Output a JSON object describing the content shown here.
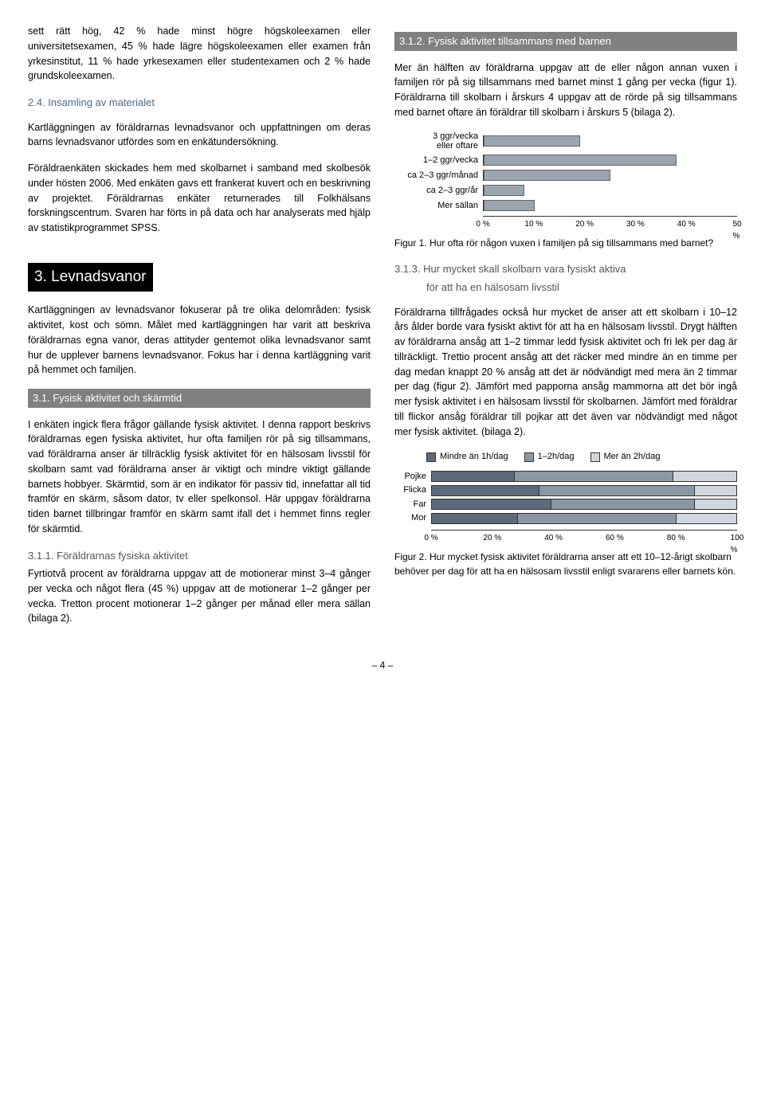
{
  "col_left": {
    "intro_para": "sett rätt hög, 42 % hade minst högre högskoleexamen eller universitetsexamen, 45 % hade lägre högskoleexamen eller examen från yrkesinstitut, 11 % hade yrkesexamen eller studentexamen och 2 % hade grundskoleexamen.",
    "h24": "2.4.  Insamling av materialet",
    "p24a": "Kartläggningen av föräldrarnas levnadsvanor och uppfattningen om deras barns levnadsvanor utfördes som en enkätundersökning.",
    "p24b": "Föräldraenkäten skickades hem med skolbarnet i samband med skolbesök under hösten 2006. Med enkäten gavs ett frankerat kuvert och en beskrivning av projektet. Föräldrarnas enkäter returnerades till Folkhälsans forskningscentrum. Svaren har förts in på data och har analyserats med hjälp av statistikprogrammet SPSS.",
    "h3": "3.  Levnadsvanor",
    "p3a": "Kartläggningen av levnadsvanor fokuserar på tre olika delområden: fysisk aktivitet, kost och sömn. Målet med kartläggningen har varit att beskriva föräldrarnas egna vanor, deras attityder gentemot olika levnadsvanor samt hur de upplever barnens levnadsvanor. Fokus har i denna kartläggning varit på hemmet och familjen.",
    "h31": "3.1.  Fysisk aktivitet och skärmtid",
    "p31a": "I enkäten ingick flera frågor gällande fysisk aktivitet. I denna rapport beskrivs föräldrarnas egen fysiska aktivitet, hur ofta familjen rör på sig tillsammans, vad föräldrarna anser är tillräcklig fysisk aktivitet för en hälsosam livsstil för skolbarn samt vad föräldrarna anser är viktigt och mindre viktigt gällande barnets hobbyer. Skärmtid, som är en indikator för passiv tid, innefattar all tid framför en skärm, såsom dator, tv eller spelkonsol. Här uppgav föräldrarna tiden barnet tillbringar framför en skärm samt ifall det i hemmet finns regler för skärmtid.",
    "h311": "3.1.1.  Föräldrarnas fysiska aktivitet",
    "p311a": "Fyrtiotvå procent av föräldrarna uppgav att de motionerar minst 3–4 gånger per vecka och något flera (45 %) uppgav att de motionerar 1–2 gånger per vecka. Tretton procent motionerar 1–2 gånger per månad eller mera sällan (bilaga 2)."
  },
  "col_right": {
    "h312": "3.1.2.  Fysisk aktivitet tillsammans med barnen",
    "p312a": "Mer än hälften av föräldrarna uppgav att de eller någon annan vuxen i familjen rör på sig tillsammans med barnet minst 1 gång per vecka (figur 1). Föräldrarna till skolbarn i årskurs 4 uppgav att de rörde på sig tillsammans med barnet oftare än föräldrar till skolbarn i årskurs 5 (bilaga 2).",
    "h313": "3.1.3.  Hur mycket skall skolbarn vara fysiskt aktiva",
    "h313b": "för att ha en hälsosam livsstil",
    "p313a": "Föräldrarna tillfrågades också hur mycket de anser att ett skolbarn i 10–12 års ålder borde vara fysiskt aktivt för att ha en hälsosam livsstil. Drygt hälften av föräldrarna ansåg att 1–2 timmar ledd fysisk aktivitet och fri lek per dag är tillräckligt. Trettio procent ansåg att det räcker med mindre än en timme per dag medan knappt 20 % ansåg att det är nödvändigt med mera än 2 timmar per dag (figur 2). Jämfört med papporna ansåg mammorna att det bör ingå mer fysisk aktivitet i en hälsosam livsstil för skolbarnen. Jämfört med föräldrar till flickor ansåg föräldrar till pojkar att det även var nödvändigt med något mer fysisk aktivitet. (bilaga 2)."
  },
  "fig1": {
    "labels": [
      "3 ggr/vecka eller oftare",
      "1–2 ggr/vecka",
      "ca 2–3 ggr/månad",
      "ca 2–3 ggr/år",
      "Mer sällan"
    ],
    "values": [
      19,
      38,
      25,
      8,
      10
    ],
    "bar_color": "#9aa5b0",
    "xlim": [
      0,
      50
    ],
    "xticks": [
      "0 %",
      "10 %",
      "20 %",
      "30 %",
      "40 %",
      "50 %"
    ],
    "caption": "Figur 1. Hur ofta rör någon vuxen i familjen på sig tillsammans med barnet?"
  },
  "fig2": {
    "legend": [
      "Mindre än 1h/dag",
      "1–2h/dag",
      "Mer än 2h/dag"
    ],
    "legend_colors": [
      "#5b6b7b",
      "#8a97a4",
      "#cfd6dd"
    ],
    "rows": [
      {
        "label": "Pojke",
        "segs": [
          27,
          52,
          21
        ]
      },
      {
        "label": "Flicka",
        "segs": [
          35,
          51,
          14
        ]
      },
      {
        "label": "Far",
        "segs": [
          39,
          47,
          14
        ]
      },
      {
        "label": "Mor",
        "segs": [
          28,
          52,
          20
        ]
      }
    ],
    "xticks": [
      "0 %",
      "20 %",
      "40 %",
      "60 %",
      "80 %",
      "100 %"
    ],
    "caption": "Figur 2. Hur mycket fysisk aktivitet föräldrarna anser att ett 10–12-årigt skolbarn behöver per dag för att ha en hälsosam livsstil enligt svararens eller barnets kön."
  },
  "page_number": "– 4 –"
}
